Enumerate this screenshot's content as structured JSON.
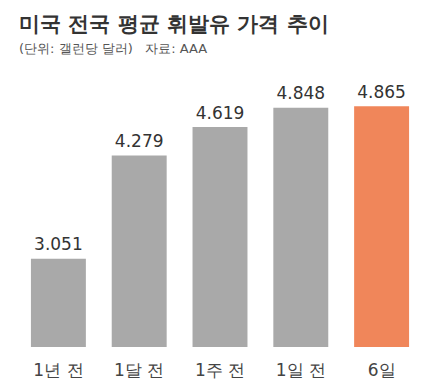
{
  "chart_data": {
    "type": "bar",
    "title": "미국 전국 평균 휘발유 가격 추이",
    "subtitle": "(단위: 갤런당 달러)   자료: AAA",
    "categories": [
      "1년 전",
      "1달 전",
      "1주 전",
      "1일 전",
      "6일"
    ],
    "values": [
      3.051,
      4.279,
      4.619,
      4.848,
      4.865
    ],
    "colors": [
      "#a9a9a9",
      "#a9a9a9",
      "#a9a9a9",
      "#a9a9a9",
      "#f0865a"
    ],
    "ylim": [
      2,
      5
    ],
    "yticks": [
      2,
      3,
      4,
      5
    ],
    "grid": false,
    "data_labels": true,
    "tick_labels": "x"
  }
}
